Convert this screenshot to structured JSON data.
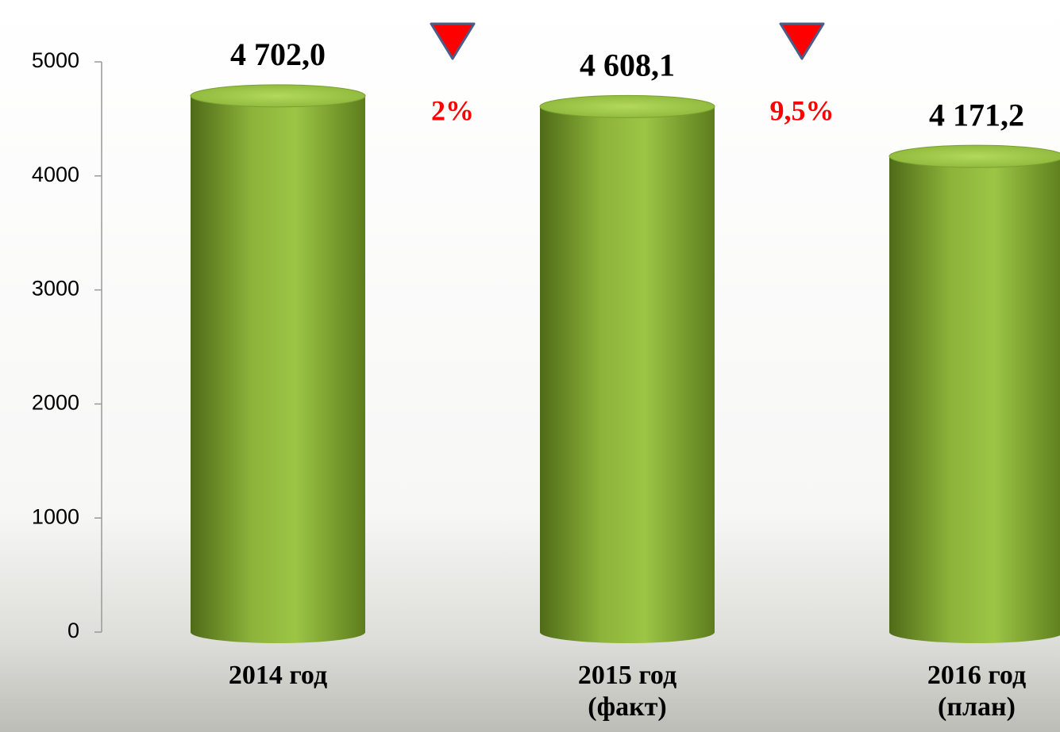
{
  "chart_data": {
    "type": "bar",
    "categories": [
      "2014 год",
      "2015 год (факт)",
      "2016 год (план)"
    ],
    "values": [
      4702.0,
      4608.1,
      4171.2
    ],
    "value_labels": [
      "4 702,0",
      "4 608,1",
      "4 171,2"
    ],
    "annotations": [
      "2%",
      "9,5%"
    ],
    "color": "#8db33a",
    "ylim": [
      0,
      5000
    ],
    "yticks": [
      0,
      1000,
      2000,
      3000,
      4000,
      5000
    ],
    "grid": false
  }
}
